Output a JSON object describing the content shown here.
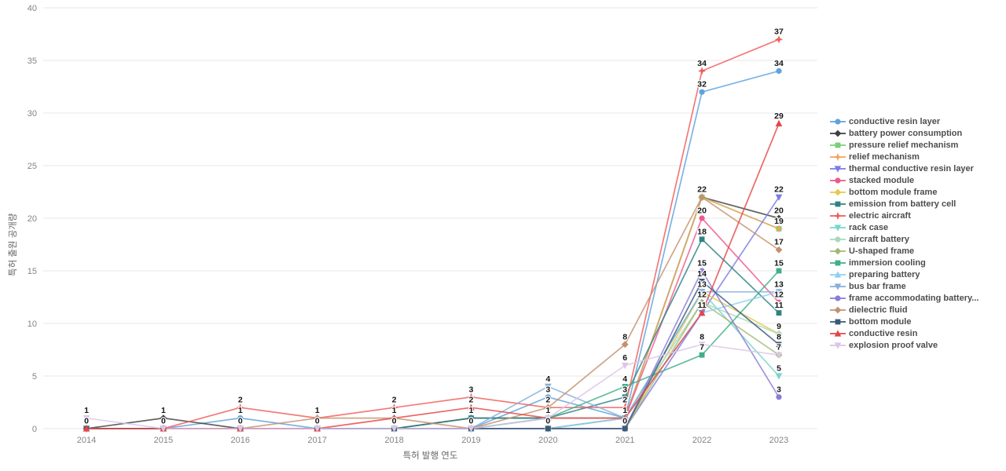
{
  "chart_data": {
    "type": "line",
    "title": "",
    "xlabel": "특허 발행 연도",
    "ylabel": "특허 출원 공개량",
    "x": [
      2014,
      2015,
      2016,
      2017,
      2018,
      2019,
      2020,
      2021,
      2022,
      2023
    ],
    "ylim": [
      0,
      40
    ],
    "yticks": [
      0,
      5,
      10,
      15,
      20,
      25,
      30,
      35,
      40
    ],
    "grid": true,
    "legend_position": "right",
    "colors": {
      "grid": "#e7e7e7",
      "tick_text": "#848484",
      "axis_label_text": "#666666",
      "data_label_text": "#151515",
      "legend_text": "#4d4d4d"
    },
    "series": [
      {
        "name": "conductive resin layer",
        "color": "#5fa2dd",
        "marker": "circle",
        "values": [
          0,
          0,
          1,
          0,
          0,
          0,
          3,
          1,
          32,
          34
        ]
      },
      {
        "name": "battery power consumption",
        "color": "#3f3f3f",
        "marker": "diamond",
        "values": [
          0,
          1,
          0,
          0,
          0,
          1,
          1,
          1,
          22,
          20
        ]
      },
      {
        "name": "pressure relief mechanism",
        "color": "#7bce7b",
        "marker": "square",
        "values": [
          0,
          0,
          0,
          0,
          0,
          0,
          0,
          1,
          22,
          19
        ]
      },
      {
        "name": "relief mechanism",
        "color": "#f2a35c",
        "marker": "star",
        "values": [
          0,
          0,
          0,
          0,
          0,
          0,
          0,
          1,
          22,
          19
        ]
      },
      {
        "name": "thermal conductive resin layer",
        "color": "#7b7be5",
        "marker": "triangle-down",
        "values": [
          0,
          0,
          0,
          0,
          0,
          0,
          0,
          0,
          11,
          22
        ]
      },
      {
        "name": "stacked module",
        "color": "#ee5a8c",
        "marker": "circle",
        "values": [
          0,
          0,
          0,
          0,
          0,
          0,
          0,
          1,
          20,
          12
        ]
      },
      {
        "name": "bottom module frame",
        "color": "#e2cb4e",
        "marker": "diamond",
        "values": [
          0,
          0,
          0,
          0,
          0,
          0,
          0,
          0,
          13,
          9
        ]
      },
      {
        "name": "emission from battery cell",
        "color": "#2e8383",
        "marker": "square",
        "values": [
          0,
          0,
          0,
          0,
          0,
          1,
          1,
          3,
          18,
          11
        ]
      },
      {
        "name": "electric aircraft",
        "color": "#f15b5b",
        "marker": "star",
        "values": [
          0,
          0,
          2,
          1,
          2,
          3,
          2,
          2,
          34,
          37
        ]
      },
      {
        "name": "rack case",
        "color": "#79d6cd",
        "marker": "triangle-down",
        "values": [
          0,
          0,
          0,
          0,
          0,
          0,
          0,
          1,
          13,
          5
        ]
      },
      {
        "name": "aircraft battery",
        "color": "#a8d8be",
        "marker": "circle",
        "values": [
          0,
          0,
          0,
          0,
          0,
          0,
          1,
          1,
          12,
          9
        ]
      },
      {
        "name": "U-shaped frame",
        "color": "#a4b873",
        "marker": "diamond",
        "values": [
          0,
          0,
          0,
          0,
          0,
          0,
          0,
          0,
          12,
          7
        ]
      },
      {
        "name": "immersion cooling",
        "color": "#3fae8a",
        "marker": "square",
        "values": [
          0,
          0,
          0,
          0,
          0,
          0,
          1,
          4,
          7,
          15
        ]
      },
      {
        "name": "preparing battery",
        "color": "#8dd0f0",
        "marker": "triangle-up",
        "values": [
          0,
          0,
          0,
          0,
          0,
          0,
          0,
          1,
          11,
          13
        ]
      },
      {
        "name": "bus bar frame",
        "color": "#85afdc",
        "marker": "triangle-down",
        "values": [
          0,
          0,
          0,
          0,
          0,
          0,
          4,
          1,
          13,
          13
        ]
      },
      {
        "name": "frame accommodating battery...",
        "color": "#8a7cd8",
        "marker": "circle",
        "values": [
          0,
          0,
          0,
          0,
          0,
          0,
          0,
          0,
          15,
          3
        ]
      },
      {
        "name": "dielectric fluid",
        "color": "#c4916f",
        "marker": "diamond",
        "values": [
          0,
          0,
          0,
          1,
          1,
          0,
          2,
          8,
          22,
          17
        ]
      },
      {
        "name": "bottom module",
        "color": "#3c5a78",
        "marker": "square",
        "values": [
          0,
          0,
          0,
          0,
          0,
          0,
          0,
          0,
          14,
          8
        ]
      },
      {
        "name": "conductive resin",
        "color": "#e64545",
        "marker": "triangle-up",
        "values": [
          0,
          0,
          0,
          0,
          1,
          2,
          1,
          1,
          11,
          29
        ]
      },
      {
        "name": "explosion proof valve",
        "color": "#dcc5e8",
        "marker": "triangle-down",
        "values": [
          1,
          0,
          0,
          0,
          0,
          0,
          1,
          6,
          8,
          7
        ]
      }
    ]
  }
}
